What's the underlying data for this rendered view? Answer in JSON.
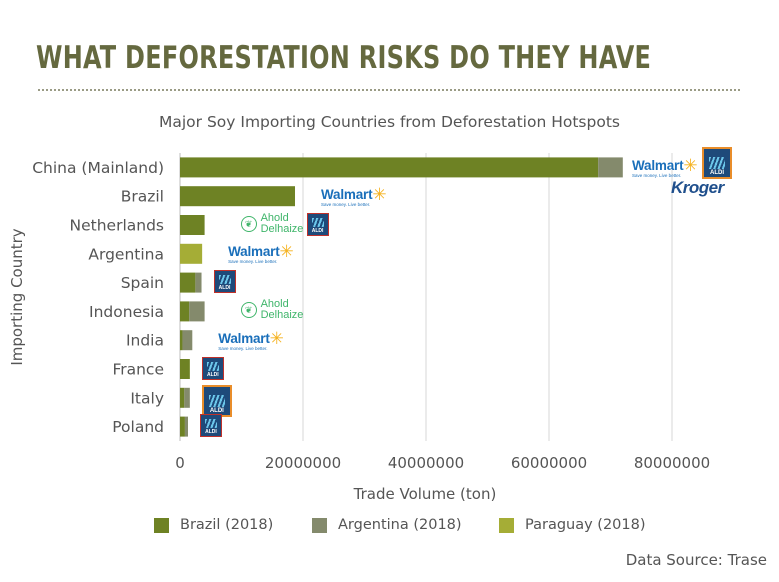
{
  "header": {
    "title": "WHAT DEFORESTATION RISKS DO THEY HAVE"
  },
  "source": "Data Source: Trase",
  "colors": {
    "brazil": "#6e8224",
    "argentina": "#848a6c",
    "paraguay": "#a5ad36",
    "title": "#65693f",
    "grid": "#d7d7d7"
  },
  "chart_data": {
    "type": "bar",
    "orientation": "horizontal",
    "stacked": true,
    "title": "Major Soy Importing Countries from Deforestation Hotspots",
    "xlabel": "Trade Volume (ton)",
    "ylabel": "Importing Country",
    "xlim": [
      0,
      95000000
    ],
    "x_ticks": [
      0,
      20000000,
      40000000,
      60000000,
      80000000
    ],
    "x_tick_labels": [
      "0",
      "20000000",
      "40000000",
      "60000000",
      "80000000"
    ],
    "grid": "vertical",
    "legend": "bottom",
    "categories": [
      "China (Mainland)",
      "Brazil",
      "Netherlands",
      "Argentina",
      "Spain",
      "Indonesia",
      "India",
      "France",
      "Italy",
      "Poland"
    ],
    "series": [
      {
        "name": "Brazil (2018)",
        "color": "#6e8224",
        "values": [
          68000000,
          18700000,
          4000000,
          0,
          2500000,
          1500000,
          400000,
          1600000,
          700000,
          800000
        ]
      },
      {
        "name": "Argentina (2018)",
        "color": "#848a6c",
        "values": [
          4000000,
          0,
          0,
          0,
          1000000,
          2500000,
          1600000,
          0,
          900000,
          500000
        ]
      },
      {
        "name": "Paraguay (2018)",
        "color": "#a5ad36",
        "values": [
          0,
          0,
          0,
          3600000,
          0,
          0,
          0,
          0,
          0,
          0
        ]
      }
    ]
  },
  "retailer_labels": {
    "walmart": "Walmart",
    "walmart_tagline": "Save money. Live better.",
    "aldi": "ALDI",
    "ahold_line1": "Ahold",
    "ahold_line2": "Delhaize",
    "kroger": "Kroger"
  },
  "retailers": [
    {
      "country": "China (Mainland)",
      "logos": [
        "walmart",
        "aldi-highlight",
        "kroger"
      ]
    },
    {
      "country": "Brazil",
      "logos": [
        "walmart"
      ]
    },
    {
      "country": "Netherlands",
      "logos": [
        "ahold-delhaize",
        "aldi"
      ]
    },
    {
      "country": "Argentina",
      "logos": [
        "walmart"
      ]
    },
    {
      "country": "Spain",
      "logos": [
        "aldi"
      ]
    },
    {
      "country": "Indonesia",
      "logos": [
        "ahold-delhaize"
      ]
    },
    {
      "country": "India",
      "logos": [
        "walmart"
      ]
    },
    {
      "country": "France",
      "logos": [
        "aldi"
      ]
    },
    {
      "country": "Italy",
      "logos": [
        "aldi-highlight"
      ]
    },
    {
      "country": "Poland",
      "logos": [
        "aldi"
      ]
    }
  ]
}
